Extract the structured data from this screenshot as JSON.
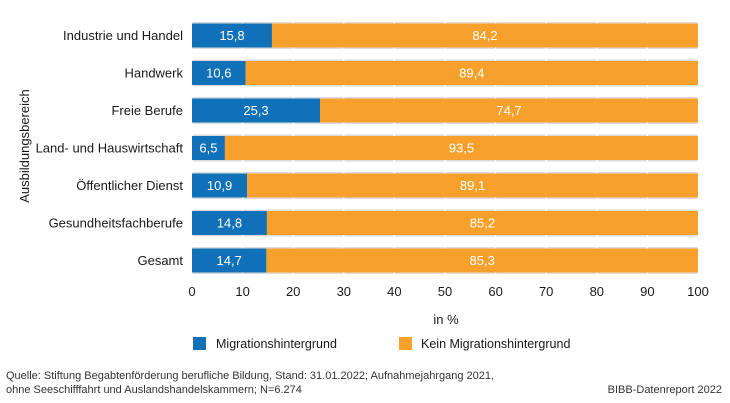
{
  "chart_data": {
    "type": "bar",
    "orientation": "horizontal",
    "stacked": true,
    "categories": [
      "Industrie und Handel",
      "Handwerk",
      "Freie Berufe",
      "Land- und Hauswirtschaft",
      "Öffentlicher Dienst",
      "Gesundheitsfachberufe",
      "Gesamt"
    ],
    "series": [
      {
        "name": "Migrationshintergrund",
        "color": "#1070b8",
        "values": [
          15.8,
          10.6,
          25.3,
          6.5,
          10.9,
          14.8,
          14.7
        ],
        "value_labels": [
          "15,8",
          "10,6",
          "25,3",
          "6,5",
          "10,9",
          "14,8",
          "14,7"
        ]
      },
      {
        "name": "Kein Migrationshintergrund",
        "color": "#f7a12c",
        "values": [
          84.2,
          89.4,
          74.7,
          93.5,
          89.1,
          85.2,
          85.3
        ],
        "value_labels": [
          "84,2",
          "89,4",
          "74,7",
          "93,5",
          "89,1",
          "85,2",
          "85,3"
        ]
      }
    ],
    "xlabel": "in %",
    "ylabel": "Ausbildungsbereich",
    "xlim": [
      0,
      100
    ],
    "xticks": [
      0,
      10,
      20,
      30,
      40,
      50,
      60,
      70,
      80,
      90,
      100
    ],
    "grid": "vertical",
    "band_color": "#dcdcdc",
    "legend_position": "bottom"
  },
  "source": {
    "line1": "Quelle: Stiftung Begabtenförderung berufliche Bildung, Stand: 31.01.2022; Aufnahmejahrgang 2021,",
    "line2": "ohne Seeschifffahrt und Auslandshandelskammern; N=6.274"
  },
  "report": "BIBB-Datenreport 2022"
}
